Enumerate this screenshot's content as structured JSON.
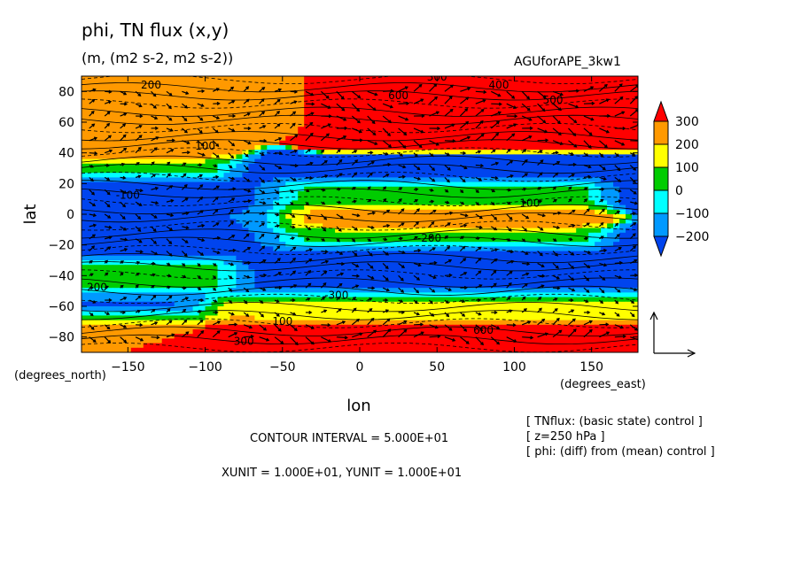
{
  "header": {
    "title": "phi, TN flux (x,y)",
    "subtitle": "(m, (m2 s-2, m2 s-2))",
    "run_name": "AGUforAPE_3kw1"
  },
  "footer": {
    "contour_interval": "CONTOUR INTERVAL = 5.000E+01",
    "vector_units": "XUNIT = 1.000E+01, YUNIT = 1.000E+01",
    "notes": [
      "[ TNflux: (basic state) control ]",
      "[ z=250 hPa ]",
      "[ phi: (diff) from (mean) control ]"
    ]
  },
  "chart_data": {
    "type": "heatmap",
    "title": "phi, TN flux (x,y)",
    "xlabel": "lon",
    "ylabel": "lat",
    "x_unit_label": "(degrees_east)",
    "y_unit_label": "(degrees_north)",
    "xlim": [
      -180,
      180
    ],
    "ylim": [
      -90,
      90
    ],
    "xticks": [
      -150,
      -100,
      -50,
      0,
      50,
      100,
      150
    ],
    "yticks": [
      80,
      60,
      40,
      20,
      0,
      -20,
      -40,
      -60,
      -80
    ],
    "colorbar": {
      "levels": [
        300,
        200,
        100,
        0,
        -100,
        -200
      ],
      "colors": [
        "#ff0000",
        "#ff9900",
        "#ffff00",
        "#00cc00",
        "#00ffff",
        "#0099ff",
        "#0044ee"
      ],
      "extend": "both"
    },
    "contour_interval": 50,
    "regions": [
      {
        "lon": [
          -10,
          180
        ],
        "lat": [
          50,
          90
        ],
        "value": 450
      },
      {
        "lon": [
          -180,
          -60
        ],
        "lat": [
          60,
          90
        ],
        "value": 200
      },
      {
        "lon": [
          -180,
          -100
        ],
        "lat": [
          30,
          40
        ],
        "value": 300
      },
      {
        "lon": [
          -180,
          180
        ],
        "lat": [
          10,
          30
        ],
        "value": -250
      },
      {
        "lon": [
          -40,
          140
        ],
        "lat": [
          -15,
          15
        ],
        "value": 300
      },
      {
        "lon": [
          -180,
          -60
        ],
        "lat": [
          -15,
          15
        ],
        "value": -200
      },
      {
        "lon": [
          -180,
          180
        ],
        "lat": [
          -30,
          -15
        ],
        "value": -250
      },
      {
        "lon": [
          -180,
          -100
        ],
        "lat": [
          -45,
          -35
        ],
        "value": 300
      },
      {
        "lon": [
          -180,
          180
        ],
        "lat": [
          -65,
          -40
        ],
        "value": -220
      },
      {
        "lon": [
          -80,
          180
        ],
        "lat": [
          -90,
          -60
        ],
        "value": 500
      },
      {
        "lon": [
          -180,
          -80
        ],
        "lat": [
          -90,
          -70
        ],
        "value": 300
      }
    ],
    "contour_labels": [
      {
        "text": "300",
        "lon": 50,
        "lat": 87
      },
      {
        "text": "400",
        "lon": 90,
        "lat": 82
      },
      {
        "text": "500",
        "lon": 125,
        "lat": 72
      },
      {
        "text": "600",
        "lon": 25,
        "lat": 75
      },
      {
        "text": "200",
        "lon": -135,
        "lat": 82
      },
      {
        "text": "100",
        "lon": -100,
        "lat": 42
      },
      {
        "text": "-100",
        "lon": -150,
        "lat": 10
      },
      {
        "text": "-200",
        "lon": 45,
        "lat": -18
      },
      {
        "text": "-300",
        "lon": -15,
        "lat": -55
      },
      {
        "text": "100",
        "lon": -50,
        "lat": -72
      },
      {
        "text": "300",
        "lon": -75,
        "lat": -85
      },
      {
        "text": "600",
        "lon": 80,
        "lat": -78
      },
      {
        "text": "200",
        "lon": -170,
        "lat": -50
      },
      {
        "text": "100",
        "lon": 110,
        "lat": 5
      }
    ],
    "reference_vector": {
      "x_unit": 10,
      "y_unit": 10
    }
  }
}
